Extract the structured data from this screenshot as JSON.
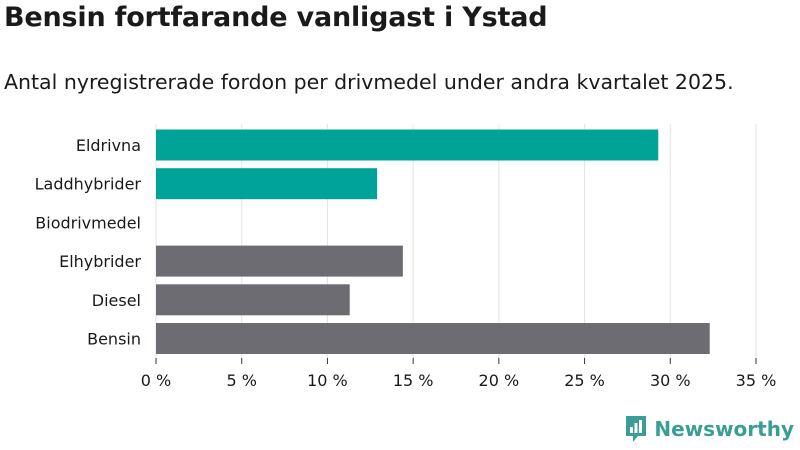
{
  "title": "Bensin fortfarande vanligast i Ystad",
  "subtitle": "Antal nyregistrerade fordon per drivmedel under andra kvartalet 2025.",
  "brand": "Newsworthy",
  "colors": {
    "highlight": "#00a398",
    "other": "#6d6c72",
    "grid": "#e3e3e3"
  },
  "chart_data": {
    "type": "bar",
    "orientation": "horizontal",
    "categories": [
      "Eldrivna",
      "Laddhybrider",
      "Biodrivmedel",
      "Elhybrider",
      "Diesel",
      "Bensin"
    ],
    "values": [
      29.3,
      12.9,
      0,
      14.4,
      11.3,
      32.3
    ],
    "bar_colors": [
      "highlight",
      "highlight",
      "highlight",
      "other",
      "other",
      "other"
    ],
    "xlim": [
      0,
      35
    ],
    "xticks": [
      0,
      5,
      10,
      15,
      20,
      25,
      30,
      35
    ],
    "xtick_labels": [
      "0 %",
      "5 %",
      "10 %",
      "15 %",
      "20 %",
      "25 %",
      "30 %",
      "35 %"
    ],
    "grid": true
  }
}
